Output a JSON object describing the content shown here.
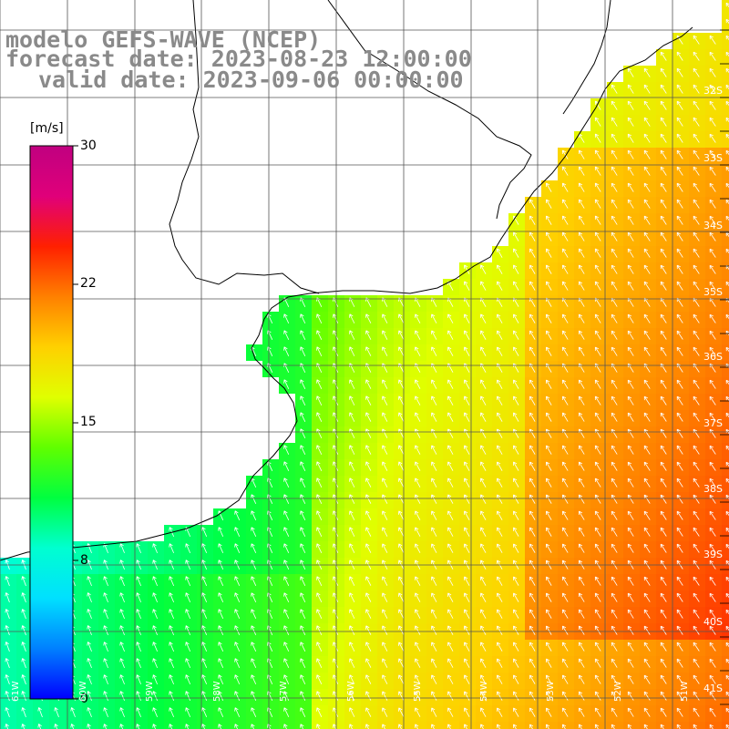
{
  "title": {
    "line1": "modelo GEFS-WAVE (NCEP)",
    "line2": "forecast date: 2023-08-23 12:00:00",
    "line3": "valid date: 2023-09-06 00:00:00"
  },
  "colorbar": {
    "unit": "[m/s]",
    "ticks": [
      "30",
      "22",
      "15",
      "8",
      "0"
    ],
    "tick_values": [
      30,
      22,
      15,
      8,
      0
    ],
    "colors": [
      "#0000ff",
      "#0080ff",
      "#00e0ff",
      "#00ffd0",
      "#00ff40",
      "#60ff00",
      "#e0ff00",
      "#ffd000",
      "#ff8000",
      "#ff2000",
      "#e0007a",
      "#c00080"
    ]
  },
  "map": {
    "lat_labels": [
      "32S",
      "33S",
      "34S",
      "35S",
      "36S",
      "37S",
      "38S",
      "39S",
      "40S",
      "41S"
    ],
    "lon_labels": [
      "61W",
      "60W",
      "59W",
      "58W",
      "57W",
      "56W",
      "55W",
      "54W",
      "53W",
      "52W",
      "51W"
    ],
    "lat_range": [
      -41,
      -31
    ],
    "lon_range": [
      -61,
      -50
    ],
    "variable": "wind speed"
  }
}
